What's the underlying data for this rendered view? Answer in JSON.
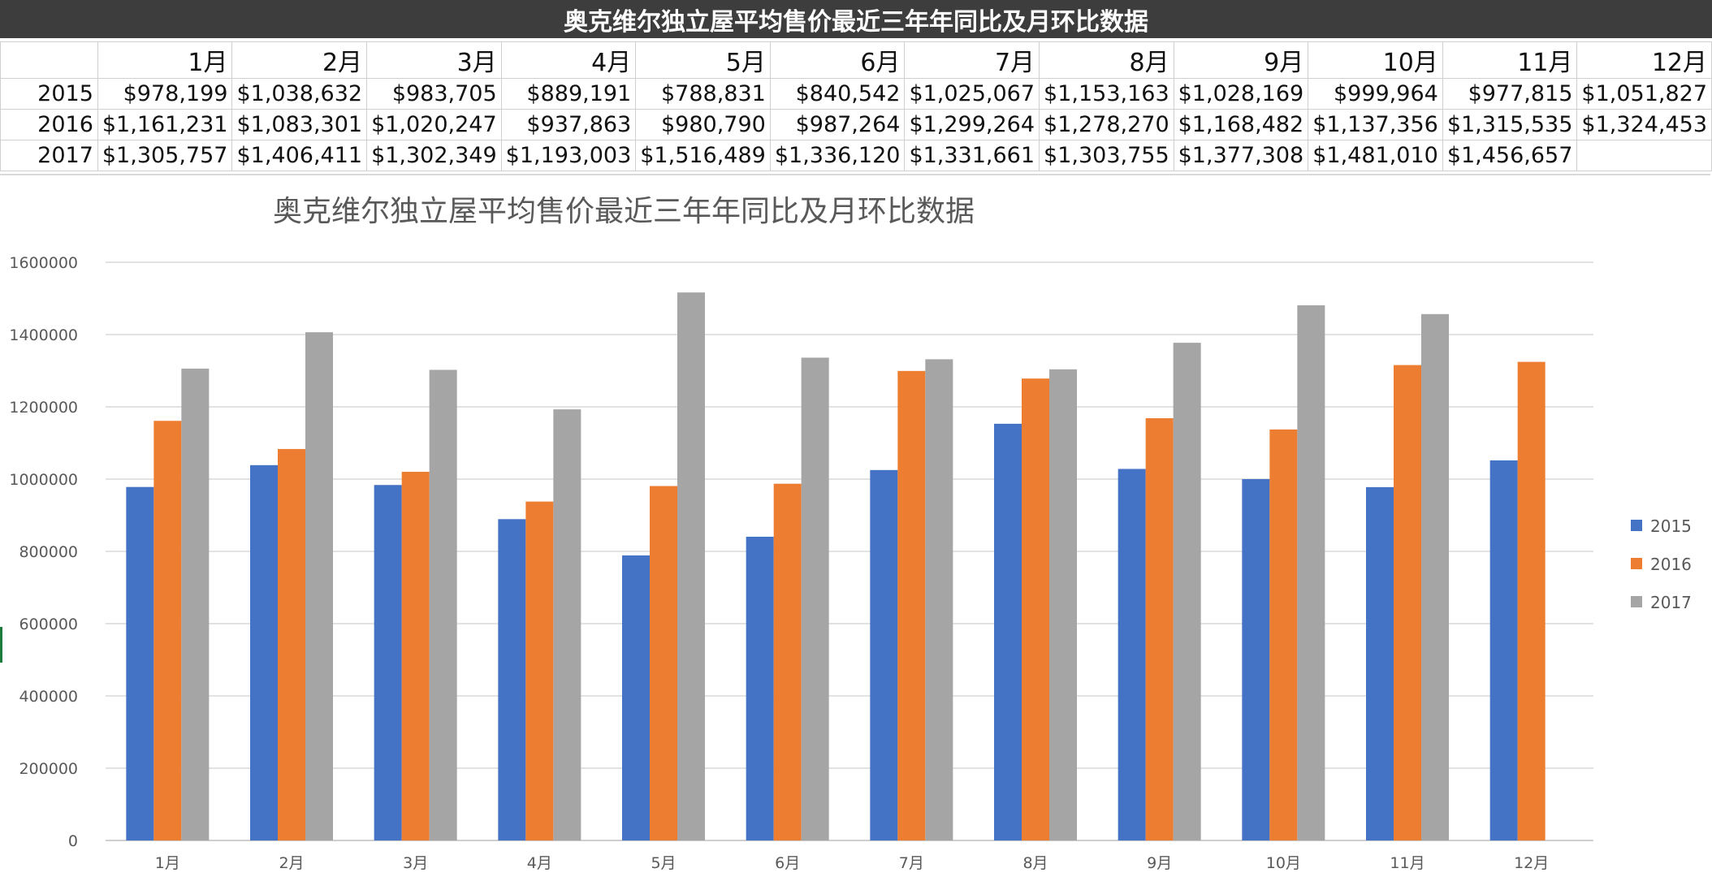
{
  "sheet": {
    "title": "奥克维尔独立屋平均售价最近三年年同比及月环比数据"
  },
  "table": {
    "header": [
      "",
      "1月",
      "2月",
      "3月",
      "4月",
      "5月",
      "6月",
      "7月",
      "8月",
      "9月",
      "10月",
      "11月",
      "12月"
    ],
    "rows": [
      [
        "2015",
        "$978,199",
        "$1,038,632",
        "$983,705",
        "$889,191",
        "$788,831",
        "$840,542",
        "$1,025,067",
        "$1,153,163",
        "$1,028,169",
        "$999,964",
        "$977,815",
        "$1,051,827"
      ],
      [
        "2016",
        "$1,161,231",
        "$1,083,301",
        "$1,020,247",
        "$937,863",
        "$980,790",
        "$987,264",
        "$1,299,264",
        "$1,278,270",
        "$1,168,482",
        "$1,137,356",
        "$1,315,535",
        "$1,324,453"
      ],
      [
        "2017",
        "$1,305,757",
        "$1,406,411",
        "$1,302,349",
        "$1,193,003",
        "$1,516,489",
        "$1,336,120",
        "$1,331,661",
        "$1,303,755",
        "$1,377,308",
        "$1,481,010",
        "$1,456,657",
        ""
      ]
    ]
  },
  "chart_data": {
    "type": "bar",
    "title": "奥克维尔独立屋平均售价最近三年年同比及月环比数据",
    "xlabel": "",
    "ylabel": "",
    "categories": [
      "1月",
      "2月",
      "3月",
      "4月",
      "5月",
      "6月",
      "7月",
      "8月",
      "9月",
      "10月",
      "11月",
      "12月"
    ],
    "series": [
      {
        "name": "2015",
        "color": "#4472c4",
        "values": [
          978199,
          1038632,
          983705,
          889191,
          788831,
          840542,
          1025067,
          1153163,
          1028169,
          999964,
          977815,
          1051827
        ]
      },
      {
        "name": "2016",
        "color": "#ed7d31",
        "values": [
          1161231,
          1083301,
          1020247,
          937863,
          980790,
          987264,
          1299264,
          1278270,
          1168482,
          1137356,
          1315535,
          1324453
        ]
      },
      {
        "name": "2017",
        "color": "#a5a5a5",
        "values": [
          1305757,
          1406411,
          1302349,
          1193003,
          1516489,
          1336120,
          1331661,
          1303755,
          1377308,
          1481010,
          1456657,
          null
        ]
      }
    ],
    "ylim": [
      0,
      1600000
    ],
    "yticks": [
      "0",
      "200000",
      "400000",
      "600000",
      "800000",
      "1000000",
      "1200000",
      "1400000",
      "1600000"
    ],
    "grid": true,
    "legend_position": "right"
  }
}
